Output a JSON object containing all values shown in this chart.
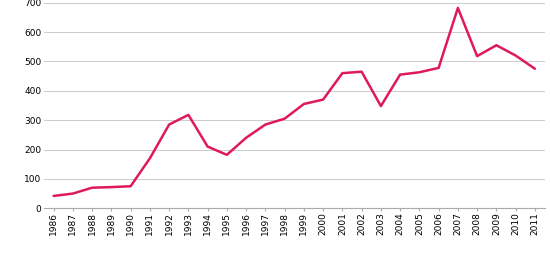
{
  "years": [
    1986,
    1987,
    1988,
    1989,
    1990,
    1991,
    1992,
    1993,
    1994,
    1995,
    1996,
    1997,
    1998,
    1999,
    2000,
    2001,
    2002,
    2003,
    2004,
    2005,
    2006,
    2007,
    2008,
    2009,
    2010,
    2011
  ],
  "values": [
    42,
    50,
    70,
    72,
    75,
    170,
    285,
    318,
    210,
    182,
    240,
    285,
    305,
    355,
    370,
    460,
    465,
    348,
    455,
    463,
    478,
    682,
    518,
    555,
    520,
    475
  ],
  "line_color": "#e0185e",
  "line_width": 1.8,
  "ylim": [
    0,
    700
  ],
  "yticks": [
    0,
    100,
    200,
    300,
    400,
    500,
    600,
    700
  ],
  "grid_color": "#cccccc",
  "background_color": "#ffffff",
  "tick_fontsize": 6.5,
  "xlabel": "",
  "ylabel": ""
}
